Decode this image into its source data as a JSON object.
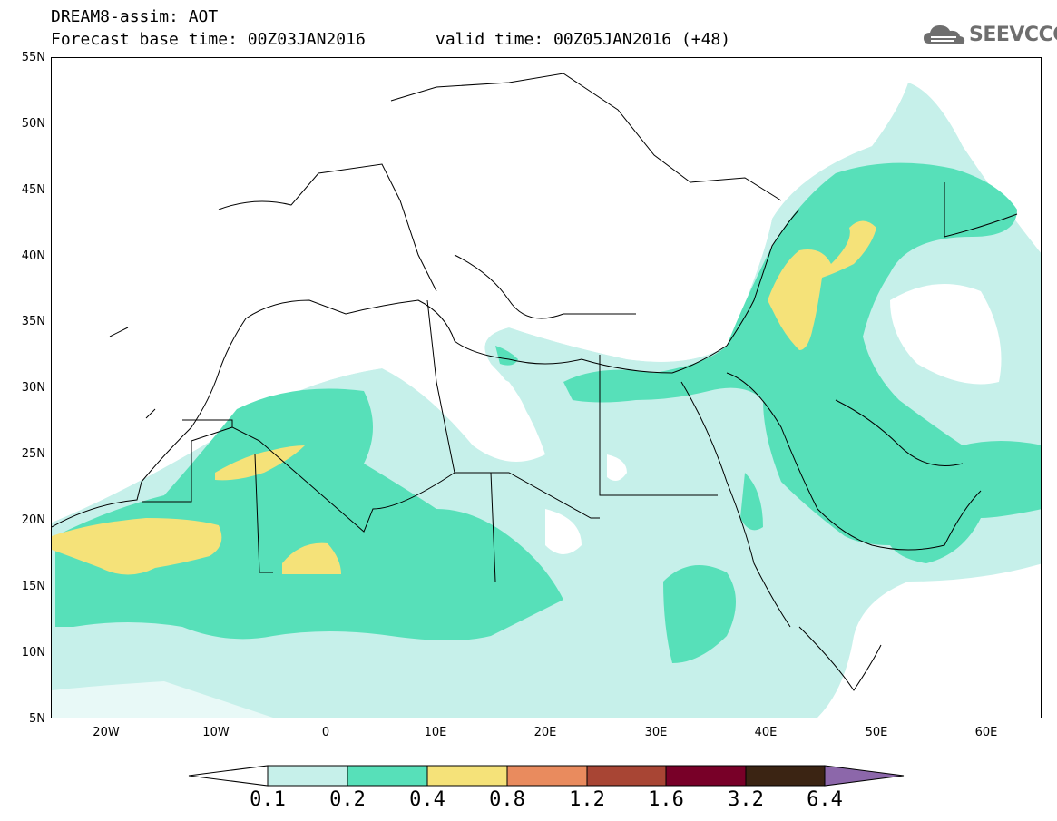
{
  "title": {
    "line1": "DREAM8-assim: AOT",
    "base_time": "Forecast base time: 00Z03JAN2016",
    "valid_time": "valid time: 00Z05JAN2016 (+48)"
  },
  "logo": {
    "text": "SEEVCCC",
    "icon": "cloud-logo-icon"
  },
  "map": {
    "lat_labels": [
      "55N",
      "50N",
      "45N",
      "40N",
      "35N",
      "30N",
      "25N",
      "20N",
      "15N",
      "10N",
      "5N"
    ],
    "lon_labels": [
      "20W",
      "10W",
      "0",
      "10E",
      "20E",
      "30E",
      "40E",
      "50E",
      "60E"
    ]
  },
  "colorbar": {
    "labels": [
      "0.1",
      "0.2",
      "0.4",
      "0.8",
      "1.2",
      "1.6",
      "3.2",
      "6.4"
    ],
    "colors": [
      "#c6f0ea",
      "#57e0b9",
      "#f5e279",
      "#e98b5e",
      "#a84534",
      "#780028",
      "#3b2413",
      "#8c67aa"
    ],
    "under_color": "#ffffff"
  }
}
